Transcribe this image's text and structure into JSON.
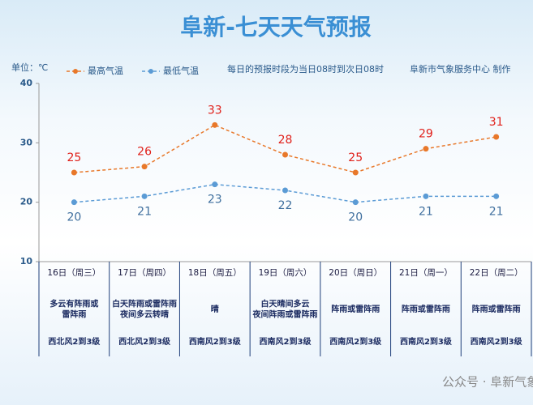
{
  "chart_data": {
    "type": "line",
    "title": "阜新-七天天气预报",
    "unit_label": "单位：℃",
    "note": "每日的预报时段为当日08时到次日08时",
    "source": "阜新市气象服务中心 制作",
    "categories": [
      "16日（周三）",
      "17日（周四）",
      "18日（周五）",
      "19日（周六）",
      "20日（周日）",
      "21日（周一）",
      "22日（周二）"
    ],
    "series": [
      {
        "name": "最高气温",
        "color": "#e8782a",
        "label_color": "#e0201a",
        "values": [
          25,
          26,
          33,
          28,
          25,
          29,
          31
        ]
      },
      {
        "name": "最低气温",
        "color": "#5b9bd5",
        "label_color": "#3f6f9e",
        "values": [
          20,
          21,
          23,
          22,
          20,
          21,
          21
        ]
      }
    ],
    "ylim": [
      10,
      40
    ],
    "yticks": [
      10,
      20,
      30,
      40
    ],
    "grid": false,
    "weather": [
      [
        "多云有阵雨或",
        "雷阵雨"
      ],
      [
        "白天阵雨或雷阵雨",
        "夜间多云转晴"
      ],
      [
        "晴"
      ],
      [
        "白天晴间多云",
        "夜间阵雨或雷阵雨"
      ],
      [
        "阵雨或雷阵雨"
      ],
      [
        "阵雨或雷阵雨"
      ],
      [
        "阵雨或雷阵雨"
      ]
    ],
    "wind": [
      "西北风2到3级",
      "西北风2到3级",
      "西南风2到3级",
      "西南风2到3级",
      "西南风2到3级",
      "西南风2到3级",
      "西南风2到3级"
    ]
  },
  "watermark": "公众号 · 阜新气象"
}
